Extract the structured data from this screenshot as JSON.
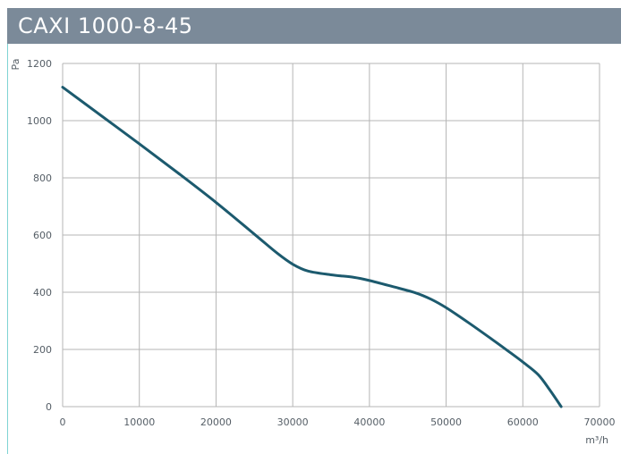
{
  "header": {
    "title": "CAXI 1000-8-45"
  },
  "colors": {
    "title_bg": "#7b8a99",
    "curve": "#1c5a6e",
    "grid": "#b5b5b5",
    "accent_rule": "#7fd4d4"
  },
  "chart_data": {
    "type": "line",
    "title": "CAXI 1000-8-45",
    "xlabel": "m³/h",
    "ylabel": "Pa",
    "xlim": [
      0,
      70000
    ],
    "ylim": [
      0,
      1200
    ],
    "x_ticks": [
      "0",
      "10000",
      "20000",
      "30000",
      "40000",
      "50000",
      "60000",
      "70000"
    ],
    "y_ticks": [
      "0",
      "200",
      "400",
      "600",
      "800",
      "1000",
      "1200"
    ],
    "grid": true,
    "series": [
      {
        "x": [
          0,
          5000,
          10000,
          15000,
          20000,
          25000,
          28000,
          30000,
          32000,
          35000,
          38000,
          40000,
          43000,
          46000,
          48000,
          50000,
          53000,
          56000,
          58000,
          60000,
          62000,
          63500,
          65000
        ],
        "values": [
          1117,
          1018,
          919,
          818,
          714,
          603,
          536,
          498,
          474,
          461,
          452,
          441,
          420,
          398,
          376,
          346,
          292,
          235,
          196,
          156,
          112,
          59,
          0
        ]
      }
    ]
  }
}
